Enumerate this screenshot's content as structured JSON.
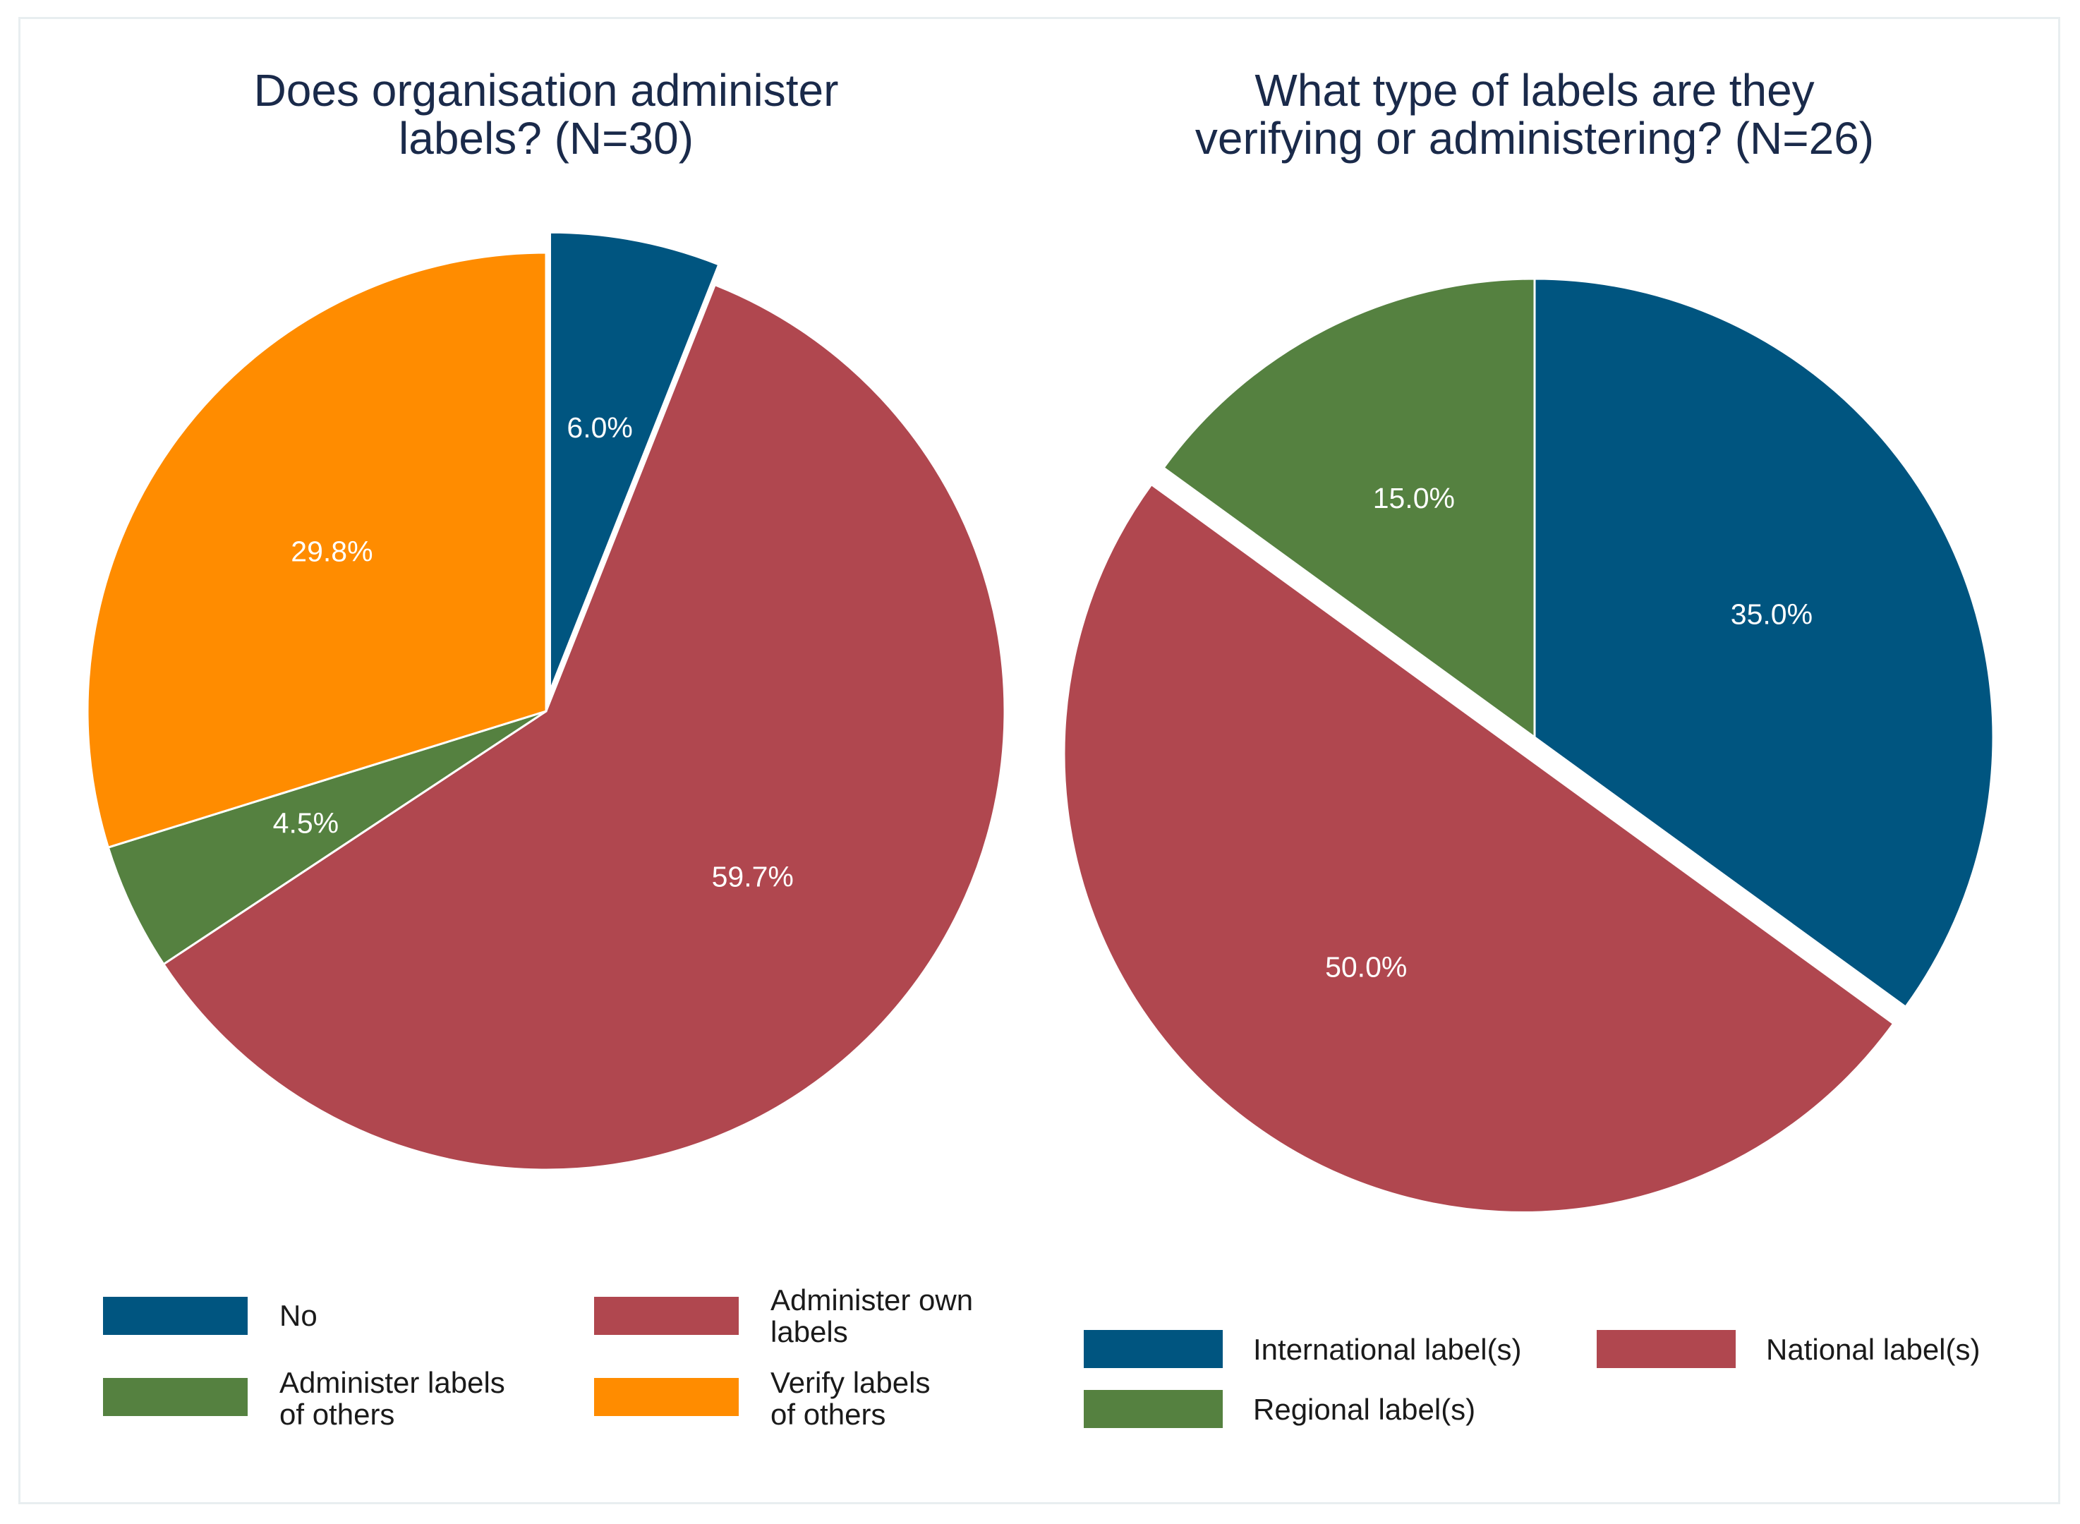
{
  "chart_data": [
    {
      "type": "pie",
      "title": [
        "Does organisation administer",
        "labels? (N=30)"
      ],
      "slices": [
        {
          "name": "No",
          "label": "6.0%",
          "value": 6.0,
          "color": "#005580",
          "exploded": true
        },
        {
          "name": "Administer own labels",
          "label": "59.7%",
          "value": 59.7,
          "color": "#b0474f",
          "exploded": false
        },
        {
          "name": "Administer labels of others",
          "label": "4.5%",
          "value": 4.5,
          "color": "#558140",
          "exploded": false
        },
        {
          "name": "Verify labels of others",
          "label": "29.8%",
          "value": 29.8,
          "color": "#ff8c00",
          "exploded": false
        }
      ],
      "legend": [
        {
          "lines": [
            "No"
          ],
          "color": "#005580"
        },
        {
          "lines": [
            "Administer own",
            "labels"
          ],
          "color": "#b0474f"
        },
        {
          "lines": [
            "Administer labels",
            "of others"
          ],
          "color": "#558140"
        },
        {
          "lines": [
            "Verify labels",
            "of others"
          ],
          "color": "#ff8c00"
        }
      ],
      "legend_position": "bottom"
    },
    {
      "type": "pie",
      "title": [
        "What type of labels are they",
        "verifying or administering? (N=26)"
      ],
      "slices": [
        {
          "name": "International label(s)",
          "label": "35.0%",
          "value": 35.0,
          "color": "#005580",
          "exploded": false
        },
        {
          "name": "National label(s)",
          "label": "50.0%",
          "value": 50.0,
          "color": "#b0474f",
          "exploded": true
        },
        {
          "name": "Regional label(s)",
          "label": "15.0%",
          "value": 15.0,
          "color": "#558140",
          "exploded": false
        }
      ],
      "legend": [
        {
          "lines": [
            "International label(s)"
          ],
          "color": "#005580"
        },
        {
          "lines": [
            "National label(s)"
          ],
          "color": "#b0474f"
        },
        {
          "lines": [
            "Regional label(s)"
          ],
          "color": "#558140"
        }
      ],
      "legend_position": "bottom"
    }
  ]
}
